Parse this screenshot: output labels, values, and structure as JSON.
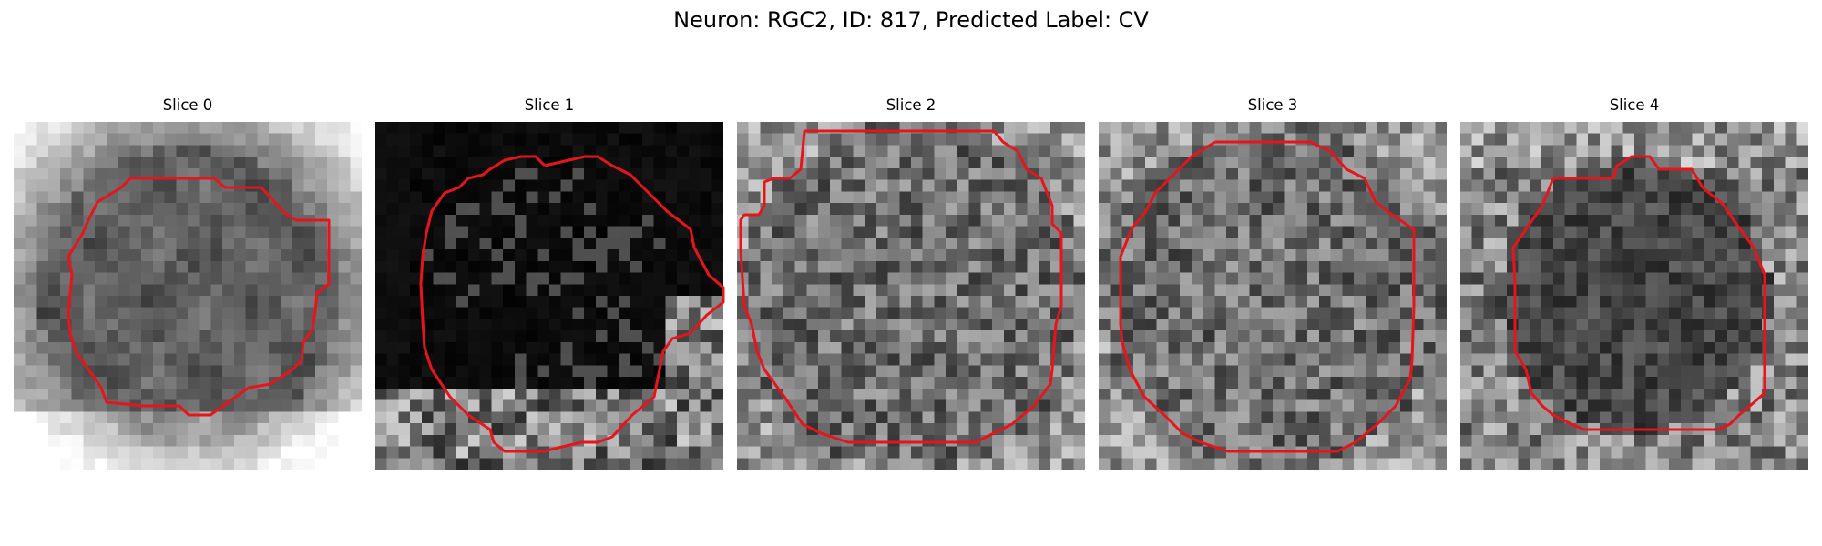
{
  "figure": {
    "title": "Neuron: RGC2, ID: 817, Predicted Label: CV"
  },
  "contour_color": "#e8141c",
  "panels": [
    {
      "title": "Slice 0",
      "tone": "mid_dark_center_light_corners"
    },
    {
      "title": "Slice 1",
      "tone": "very_dark_center_noisy_bottom"
    },
    {
      "title": "Slice 2",
      "tone": "mid_gray_noisy"
    },
    {
      "title": "Slice 3",
      "tone": "mid_gray_noisy"
    },
    {
      "title": "Slice 4",
      "tone": "dark_center_light_edges"
    }
  ]
}
